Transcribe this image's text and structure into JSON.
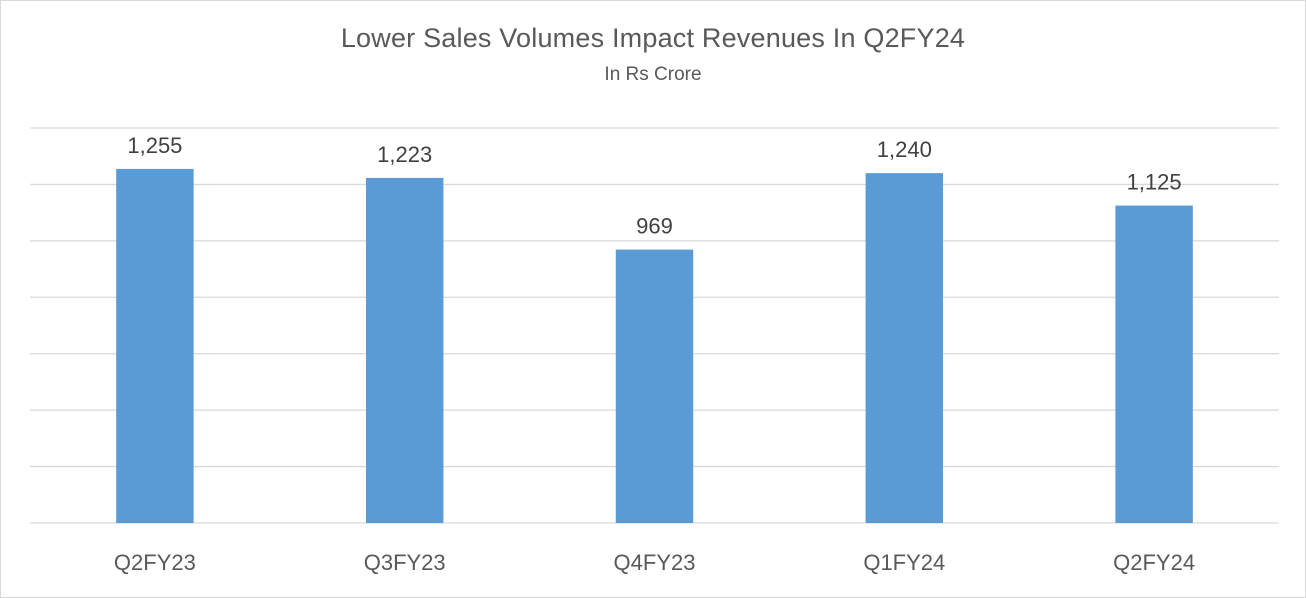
{
  "chart_data": {
    "type": "bar",
    "title": "Lower Sales Volumes Impact Revenues In Q2FY24",
    "subtitle": "In Rs Crore",
    "xlabel": "",
    "ylabel": "",
    "categories": [
      "Q2FY23",
      "Q3FY23",
      "Q4FY23",
      "Q1FY24",
      "Q2FY24"
    ],
    "values": [
      1255,
      1223,
      969,
      1240,
      1125
    ],
    "data_labels": [
      "1,255",
      "1,223",
      "969",
      "1,240",
      "1,125"
    ],
    "ylim": [
      0,
      1400
    ],
    "gridlines": [
      200,
      400,
      600,
      800,
      1000,
      1200,
      1400
    ],
    "grid": true,
    "legend": "none",
    "bar_color": "#5b9bd5"
  }
}
